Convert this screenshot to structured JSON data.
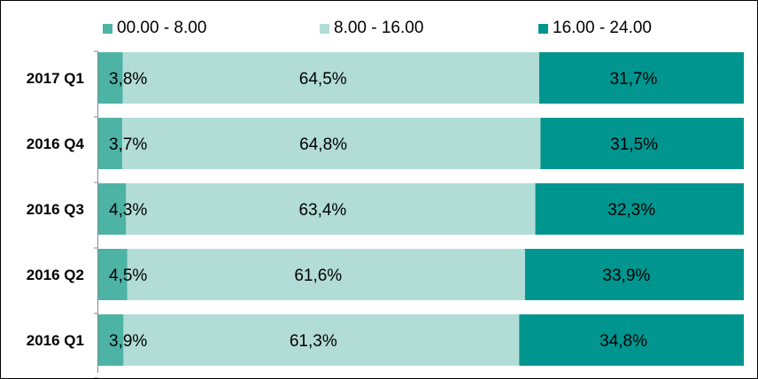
{
  "chart_data": {
    "type": "bar",
    "orientation": "horizontal",
    "stacked": true,
    "normalized": true,
    "categories": [
      "2017 Q1",
      "2016 Q4",
      "2016 Q3",
      "2016 Q2",
      "2016 Q1"
    ],
    "series": [
      {
        "name": "00.00 - 8.00",
        "values": [
          3.8,
          3.7,
          4.3,
          4.5,
          3.9
        ],
        "labels": [
          "3,8%",
          "3,7%",
          "4,3%",
          "4,5%",
          "3,9%"
        ],
        "color": "#4cb3a5"
      },
      {
        "name": "8.00 - 16.00",
        "values": [
          64.5,
          64.8,
          63.4,
          61.6,
          61.3
        ],
        "labels": [
          "64,5%",
          "64,8%",
          "63,4%",
          "61,6%",
          "61,3%"
        ],
        "color": "#b2ddd6"
      },
      {
        "name": "16.00 - 24.00",
        "values": [
          31.7,
          31.5,
          32.3,
          33.9,
          34.8
        ],
        "labels": [
          "31,7%",
          "31,5%",
          "32,3%",
          "33,9%",
          "34,8%"
        ],
        "color": "#00958f"
      }
    ],
    "title": "",
    "xlabel": "",
    "ylabel": "",
    "xlim": [
      0,
      100
    ],
    "grid": false,
    "legend": "top"
  }
}
